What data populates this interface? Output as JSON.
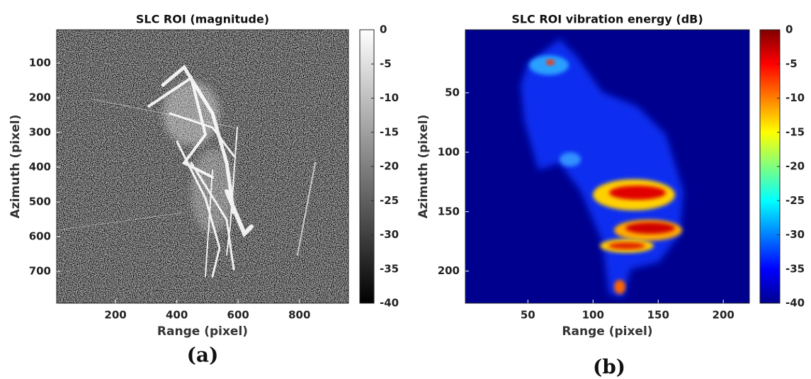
{
  "chart_data": [
    {
      "type": "image",
      "title": "SLC ROI (magnitude)",
      "x_label": "Range (pixel)",
      "y_label": "Azimuth (pixel)",
      "xlim": [
        8,
        960
      ],
      "xticks": [
        200,
        400,
        600,
        800
      ],
      "ylim": [
        792,
        4
      ],
      "yticks": [
        100,
        200,
        300,
        400,
        500,
        600,
        700
      ],
      "colormap": "gray",
      "clim": [
        -40,
        0
      ],
      "cticks": [
        0,
        -5,
        -10,
        -15,
        -20,
        -25,
        -30,
        -35,
        -40
      ],
      "caption": "(a)"
    },
    {
      "type": "image",
      "title": "SLC ROI vibration energy (dB)",
      "x_label": "Range (pixel)",
      "y_label": "Azimuth (pixel)",
      "xlim": [
        2,
        220
      ],
      "xticks": [
        50,
        100,
        150,
        200
      ],
      "ylim": [
        227,
        -3
      ],
      "yticks": [
        50,
        100,
        150,
        200
      ],
      "colormap": "jet",
      "clim": [
        -40,
        0
      ],
      "cticks": [
        0,
        -5,
        -10,
        -15,
        -20,
        -25,
        -30,
        -35,
        -40
      ],
      "caption": "(b)"
    }
  ]
}
